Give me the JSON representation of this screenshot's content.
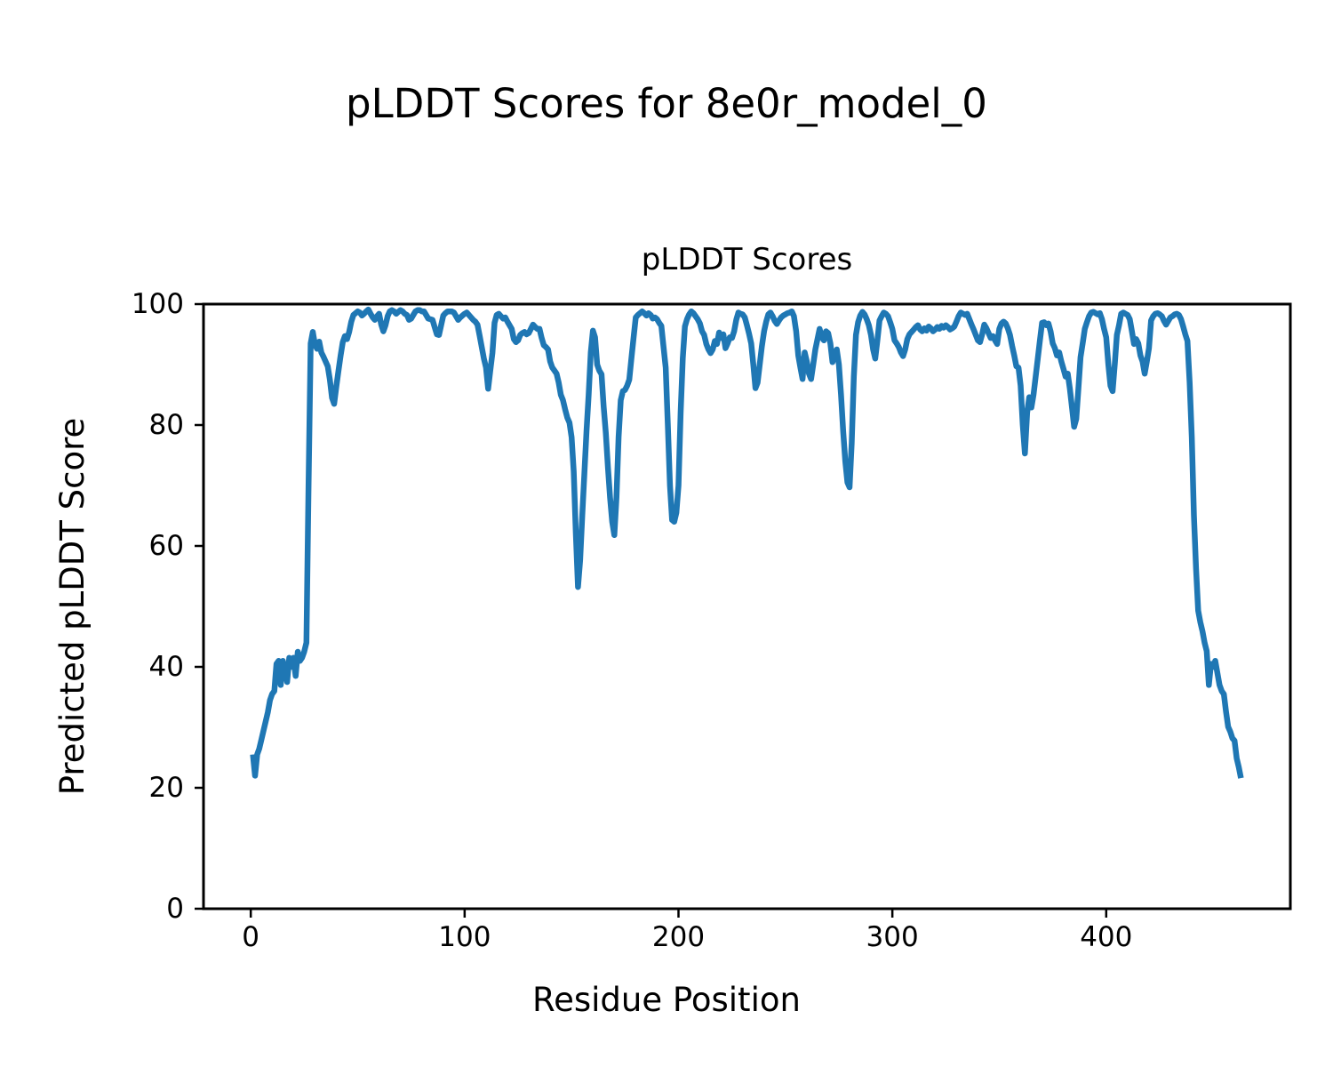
{
  "figure": {
    "suptitle": "pLDDT Scores for 8e0r_model_0"
  },
  "axes": {
    "title": "pLDDT Scores",
    "xlabel": "Residue Position",
    "ylabel": "Predicted pLDDT Score"
  },
  "colors": {
    "line": "#1f77b4",
    "axis": "#000000",
    "background": "#ffffff",
    "text": "#000000"
  },
  "chart_data": {
    "type": "line",
    "title": "pLDDT Scores",
    "xlabel": "Residue Position",
    "ylabel": "Predicted pLDDT Score",
    "x_ticks": [
      0,
      100,
      200,
      300,
      400
    ],
    "y_ticks": [
      0,
      20,
      40,
      60,
      80,
      100
    ],
    "xlim": [
      -22.1,
      486.1
    ],
    "ylim": [
      0,
      100
    ],
    "grid": false,
    "legend_visible": false,
    "series": [
      {
        "name": "pLDDT",
        "x_start": 1,
        "x_step": 1,
        "values": [
          25.5,
          22.0,
          25.5,
          26.5,
          28.0,
          29.5,
          31.0,
          32.5,
          34.5,
          35.5,
          36.0,
          40.5,
          41.0,
          37.0,
          41.0,
          39.5,
          37.5,
          41.5,
          40.0,
          41.5,
          38.5,
          42.5,
          41.0,
          41.5,
          42.5,
          44.0,
          70.0,
          93.5,
          95.4,
          93.3,
          92.6,
          93.8,
          92.0,
          91.3,
          90.5,
          89.7,
          87.5,
          84.5,
          83.5,
          86.3,
          89.0,
          91.5,
          93.7,
          94.7,
          94.2,
          95.4,
          97.1,
          98.2,
          98.5,
          98.8,
          98.6,
          98.1,
          98.4,
          98.8,
          99.1,
          98.4,
          97.8,
          97.4,
          98.0,
          98.4,
          96.6,
          95.5,
          96.5,
          98.0,
          98.8,
          99.0,
          98.8,
          98.4,
          98.7,
          99.0,
          98.8,
          98.4,
          98.2,
          97.4,
          97.6,
          98.2,
          98.8,
          99.0,
          99.0,
          98.8,
          98.8,
          98.2,
          97.6,
          97.5,
          97.4,
          96.2,
          95.0,
          94.9,
          96.5,
          98.1,
          98.5,
          98.8,
          98.8,
          98.8,
          98.6,
          98.0,
          97.4,
          97.8,
          98.1,
          98.4,
          98.6,
          98.2,
          97.8,
          97.4,
          97.1,
          96.6,
          94.8,
          92.9,
          91.0,
          89.5,
          86.0,
          89.0,
          91.9,
          96.9,
          98.2,
          98.4,
          98.0,
          97.6,
          97.8,
          97.1,
          96.5,
          95.9,
          94.2,
          93.7,
          94.0,
          94.9,
          95.2,
          95.4,
          95.0,
          95.2,
          95.9,
          96.6,
          96.2,
          95.9,
          95.9,
          94.4,
          93.2,
          92.9,
          92.5,
          90.5,
          89.5,
          89.0,
          88.5,
          87.0,
          85.0,
          84.1,
          82.6,
          81.2,
          80.4,
          78.0,
          72.3,
          62.0,
          53.2,
          57.6,
          65.0,
          72.0,
          79.0,
          85.0,
          92.0,
          95.6,
          94.5,
          90.0,
          89.0,
          88.4,
          83.0,
          78.7,
          73.0,
          68.0,
          64.0,
          61.8,
          68.0,
          78.0,
          84.1,
          85.6,
          85.8,
          86.5,
          87.5,
          91.0,
          94.5,
          97.8,
          98.2,
          98.5,
          98.8,
          98.5,
          98.1,
          98.5,
          98.2,
          97.6,
          97.8,
          97.5,
          96.9,
          96.4,
          93.0,
          89.5,
          80.0,
          70.0,
          64.3,
          64.0,
          65.5,
          70.0,
          82.0,
          91.0,
          96.3,
          97.5,
          98.3,
          98.8,
          98.5,
          98.0,
          97.5,
          96.8,
          95.5,
          94.9,
          93.4,
          92.5,
          91.9,
          92.5,
          93.9,
          93.4,
          95.3,
          94.4,
          95.0,
          92.7,
          93.5,
          94.5,
          94.4,
          95.5,
          97.4,
          98.6,
          98.4,
          98.3,
          97.8,
          96.5,
          95.1,
          93.5,
          90.0,
          86.1,
          87.0,
          90.0,
          93.0,
          95.5,
          97.1,
          98.3,
          98.6,
          98.0,
          97.2,
          96.7,
          97.3,
          97.8,
          98.1,
          98.3,
          98.5,
          98.6,
          98.8,
          98.0,
          95.5,
          91.5,
          89.5,
          87.6,
          92.0,
          90.5,
          88.5,
          87.6,
          90.0,
          92.5,
          94.2,
          95.9,
          94.5,
          94.0,
          95.5,
          95.2,
          93.5,
          90.4,
          91.5,
          92.5,
          90.0,
          85.0,
          79.0,
          74.0,
          70.5,
          69.7,
          77.0,
          88.0,
          94.9,
          97.0,
          98.1,
          98.7,
          98.3,
          97.5,
          96.5,
          94.9,
          92.5,
          91.0,
          94.0,
          97.3,
          98.0,
          98.6,
          98.4,
          98.0,
          97.0,
          95.9,
          94.0,
          93.5,
          92.9,
          92.0,
          91.4,
          92.5,
          94.2,
          95.0,
          95.4,
          95.8,
          96.2,
          96.5,
          95.8,
          95.5,
          96.0,
          95.6,
          96.3,
          96.0,
          95.5,
          95.8,
          96.2,
          95.9,
          96.4,
          96.1,
          96.5,
          96.2,
          95.8,
          96.0,
          96.3,
          97.1,
          98.0,
          98.6,
          98.4,
          98.2,
          98.4,
          97.5,
          96.6,
          95.8,
          94.9,
          94.0,
          93.7,
          95.0,
          96.6,
          96.0,
          95.2,
          94.4,
          94.7,
          94.0,
          93.4,
          95.9,
          96.8,
          97.1,
          96.8,
          96.0,
          94.9,
          93.1,
          91.5,
          89.7,
          89.5,
          86.5,
          80.0,
          75.3,
          82.0,
          84.6,
          82.9,
          85.0,
          88.0,
          91.0,
          94.0,
          96.9,
          97.0,
          96.5,
          96.8,
          95.5,
          93.5,
          92.7,
          91.5,
          92.0,
          90.5,
          89.3,
          88.0,
          88.5,
          86.0,
          82.9,
          79.7,
          81.0,
          86.0,
          91.2,
          93.5,
          95.9,
          97.0,
          98.0,
          98.6,
          98.7,
          98.5,
          98.3,
          98.5,
          97.5,
          95.9,
          94.5,
          90.0,
          86.5,
          85.6,
          90.0,
          94.9,
          96.5,
          98.4,
          98.6,
          98.4,
          98.2,
          97.5,
          95.5,
          93.4,
          94.2,
          93.5,
          91.5,
          90.5,
          88.5,
          90.5,
          92.7,
          97.3,
          98.0,
          98.4,
          98.5,
          98.3,
          98.0,
          97.2,
          96.6,
          97.2,
          97.8,
          98.0,
          98.3,
          98.4,
          98.2,
          97.5,
          96.3,
          95.0,
          93.9,
          87.0,
          78.0,
          65.0,
          56.2,
          49.3,
          47.4,
          45.9,
          44.0,
          42.6,
          37.0,
          40.5,
          40.0,
          41.0,
          39.0,
          37.0,
          36.0,
          35.5,
          32.6,
          30.1,
          29.3,
          28.2,
          27.8,
          24.9,
          23.4,
          21.6
        ]
      }
    ]
  }
}
